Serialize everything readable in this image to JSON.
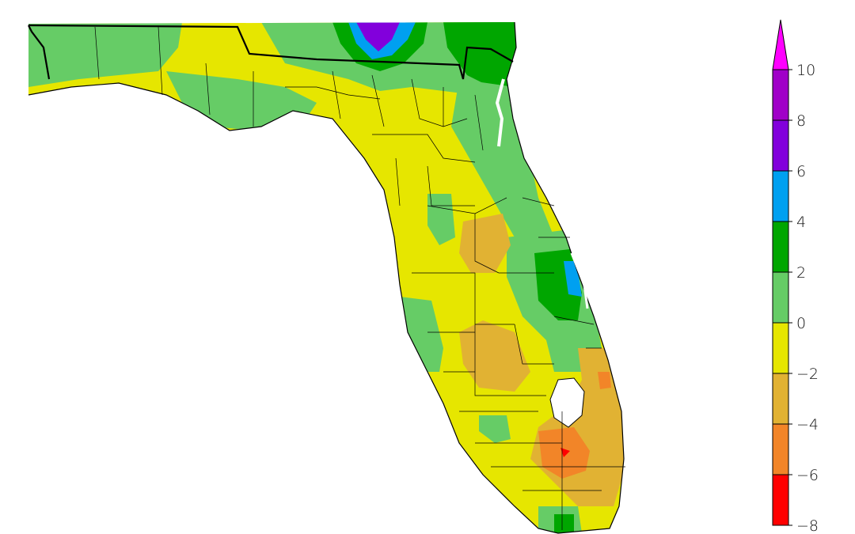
{
  "map": {
    "region": "Florida",
    "classes": [
      {
        "range": [
          -8,
          -6
        ],
        "color": "#ff0000"
      },
      {
        "range": [
          -6,
          -4
        ],
        "color": "#f28528"
      },
      {
        "range": [
          -4,
          -2
        ],
        "color": "#e1b233"
      },
      {
        "range": [
          -2,
          0
        ],
        "color": "#e6e600"
      },
      {
        "range": [
          0,
          2
        ],
        "color": "#66cc66"
      },
      {
        "range": [
          2,
          4
        ],
        "color": "#00a600"
      },
      {
        "range": [
          4,
          6
        ],
        "color": "#00a0f0"
      },
      {
        "range": [
          6,
          8
        ],
        "color": "#8200dc"
      },
      {
        "range": [
          8,
          10
        ],
        "color": "#a000c8"
      }
    ]
  },
  "legend": {
    "ticks": [
      "10",
      "8",
      "6",
      "4",
      "2",
      "0",
      "−2",
      "−4",
      "−6",
      "−8"
    ],
    "bands": [
      {
        "color": "#ff00ff",
        "label": "overflow-high"
      },
      {
        "color": "#a000c8"
      },
      {
        "color": "#8200dc"
      },
      {
        "color": "#00a0f0"
      },
      {
        "color": "#00a600"
      },
      {
        "color": "#66cc66"
      },
      {
        "color": "#e6e600"
      },
      {
        "color": "#e1b233"
      },
      {
        "color": "#f28528"
      },
      {
        "color": "#ff0000"
      }
    ]
  }
}
